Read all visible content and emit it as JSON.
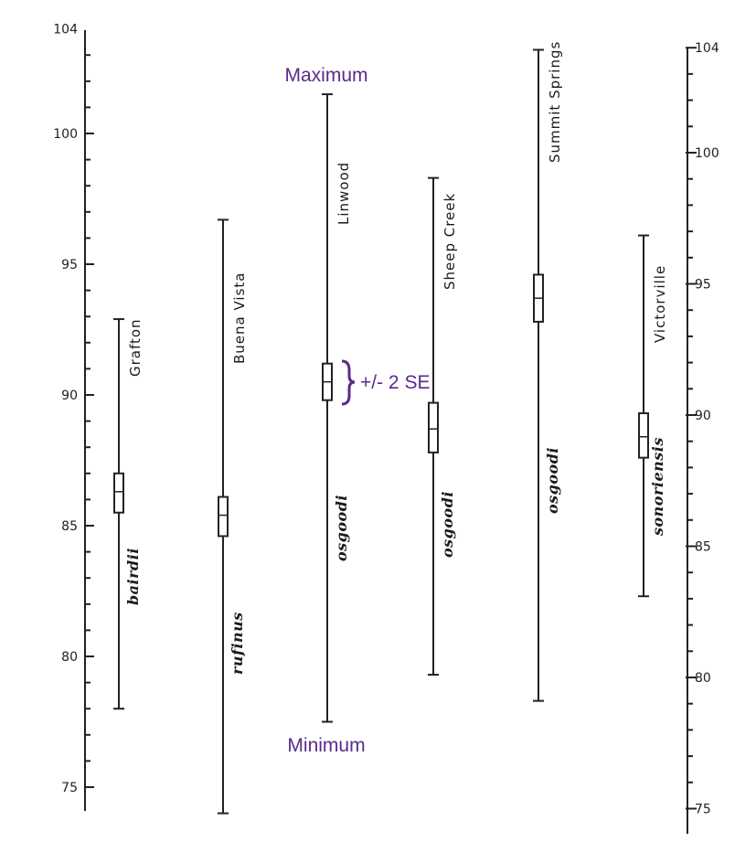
{
  "chart_data": {
    "type": "range_plot",
    "y_axis": {
      "ylim": [
        74.5,
        104
      ],
      "ticks": [
        75,
        80,
        85,
        90,
        95,
        100,
        104
      ],
      "tick_labels": [
        "75",
        "80",
        "85",
        "90",
        "95",
        "100",
        "104"
      ],
      "minor_step": 1
    },
    "series": [
      {
        "location": "Grafton",
        "subspecies": "bairdii",
        "min": 78.0,
        "max": 92.9,
        "mean": 86.3,
        "se_low": 85.5,
        "se_high": 87.0
      },
      {
        "location": "Buena Vista",
        "subspecies": "rufinus",
        "min": 74.0,
        "max": 96.7,
        "mean": 85.4,
        "se_low": 84.6,
        "se_high": 86.1
      },
      {
        "location": "Linwood",
        "subspecies": "osgoodi",
        "min": 77.5,
        "max": 101.5,
        "mean": 90.5,
        "se_low": 89.8,
        "se_high": 91.2
      },
      {
        "location": "Sheep Creek",
        "subspecies": "osgoodi",
        "min": 79.3,
        "max": 98.3,
        "mean": 88.7,
        "se_low": 87.8,
        "se_high": 89.7
      },
      {
        "location": "Summit Springs",
        "subspecies": "osgoodi",
        "min": 78.3,
        "max": 103.2,
        "mean": 93.7,
        "se_low": 92.8,
        "se_high": 94.6
      },
      {
        "location": "Victorville",
        "subspecies": "sonoriensis",
        "min": 82.3,
        "max": 96.1,
        "mean": 88.4,
        "se_low": 87.6,
        "se_high": 89.3
      }
    ],
    "annotations": {
      "maximum": "Maximum",
      "minimum": "Minimum",
      "se": "+/- 2 SE"
    }
  }
}
